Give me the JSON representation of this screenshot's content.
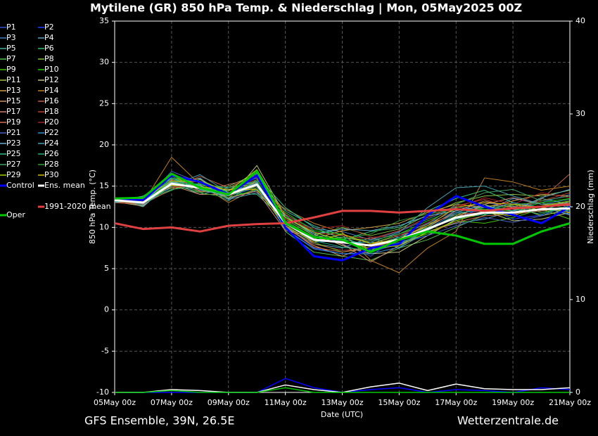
{
  "chart_data": {
    "type": "line",
    "title": "Mytilene  (GR)  850 hPa Temp. & Niederschlag | Mon, 05May2025 00Z",
    "ylabel": "850 hPa Temp. (°C)",
    "y2label": "Niederschlag (mm)",
    "xlabel": "Date (UTC)",
    "source_left": "GFS Ensemble, 39N, 26.5E",
    "source_right": "Wetterzentrale.de",
    "xlim": [
      0,
      16
    ],
    "xticks": [
      {
        "value": 0,
        "label": "05May 00z"
      },
      {
        "value": 2,
        "label": "07May 00z"
      },
      {
        "value": 4,
        "label": "09May 00z"
      },
      {
        "value": 6,
        "label": "11May 00z"
      },
      {
        "value": 8,
        "label": "13May 00z"
      },
      {
        "value": 10,
        "label": "15May 00z"
      },
      {
        "value": 12,
        "label": "17May 00z"
      },
      {
        "value": 14,
        "label": "19May 00z"
      },
      {
        "value": 16,
        "label": "21May 00z"
      }
    ],
    "ylim": [
      -10,
      35
    ],
    "yticks": [
      -10,
      -5,
      0,
      5,
      10,
      15,
      20,
      25,
      30,
      35
    ],
    "y2lim": [
      0,
      40
    ],
    "y2ticks": [
      0,
      10,
      20,
      30,
      40
    ],
    "grid": true,
    "x": [
      0,
      1,
      2,
      3,
      4,
      5,
      6,
      7,
      8,
      9,
      10,
      11,
      12,
      13,
      14,
      15,
      16
    ],
    "series": [
      {
        "name": "P1",
        "color": "#3050d0",
        "values": [
          13.2,
          13.5,
          15.0,
          14.5,
          13.8,
          14.8,
          11.2,
          9.5,
          8.0,
          6.5,
          9.0,
          10.5,
          12.0,
          13.0,
          12.5,
          13.0,
          14.0
        ]
      },
      {
        "name": "P2",
        "color": "#2040ff",
        "values": [
          13.4,
          12.8,
          15.8,
          15.2,
          14.5,
          16.0,
          9.8,
          7.5,
          6.8,
          7.0,
          8.0,
          9.0,
          11.0,
          12.5,
          11.0,
          11.5,
          12.0
        ]
      },
      {
        "name": "P3",
        "color": "#4080c0",
        "values": [
          13.0,
          13.2,
          14.8,
          16.0,
          13.5,
          14.5,
          11.5,
          9.8,
          9.5,
          8.5,
          9.5,
          11.0,
          12.5,
          12.0,
          13.5,
          12.8,
          13.0
        ]
      },
      {
        "name": "P4",
        "color": "#60a0c0",
        "values": [
          13.5,
          12.5,
          15.5,
          14.0,
          14.8,
          15.5,
          10.0,
          8.0,
          7.5,
          8.8,
          7.5,
          9.5,
          10.5,
          11.0,
          12.0,
          12.5,
          11.5
        ]
      },
      {
        "name": "P5",
        "color": "#40b0a0",
        "values": [
          13.1,
          13.8,
          16.0,
          15.0,
          13.2,
          15.8,
          12.0,
          10.2,
          9.0,
          7.2,
          8.8,
          10.2,
          11.8,
          12.8,
          11.5,
          13.5,
          12.8
        ]
      },
      {
        "name": "P6",
        "color": "#30c070",
        "values": [
          13.6,
          13.0,
          14.5,
          15.8,
          14.2,
          14.0,
          10.8,
          8.8,
          8.5,
          9.5,
          10.0,
          12.0,
          13.5,
          14.5,
          13.0,
          12.0,
          13.2
        ]
      },
      {
        "name": "P7",
        "color": "#50c050",
        "values": [
          13.3,
          12.7,
          15.2,
          14.2,
          15.0,
          16.5,
          9.5,
          7.0,
          6.5,
          6.0,
          7.5,
          8.5,
          10.0,
          11.5,
          12.8,
          11.8,
          12.5
        ]
      },
      {
        "name": "P8",
        "color": "#80c040",
        "values": [
          13.0,
          13.4,
          15.6,
          15.5,
          13.8,
          15.0,
          11.0,
          9.0,
          10.0,
          9.0,
          9.8,
          11.5,
          13.0,
          13.8,
          14.0,
          13.8,
          14.5
        ]
      },
      {
        "name": "P9",
        "color": "#40c000",
        "values": [
          13.4,
          13.1,
          16.2,
          14.6,
          14.4,
          16.2,
          10.2,
          8.2,
          7.0,
          7.5,
          8.2,
          9.2,
          10.8,
          10.5,
          11.2,
          12.2,
          11.0
        ]
      },
      {
        "name": "P10",
        "color": "#20d000",
        "values": [
          13.2,
          12.9,
          15.0,
          15.3,
          13.6,
          14.6,
          11.8,
          9.6,
          9.2,
          8.0,
          9.2,
          10.8,
          12.2,
          12.2,
          12.0,
          13.0,
          13.5
        ]
      },
      {
        "name": "P11",
        "color": "#a0c040",
        "values": [
          13.5,
          13.6,
          14.8,
          14.8,
          14.6,
          15.4,
          10.6,
          8.4,
          8.8,
          8.2,
          8.0,
          9.6,
          11.4,
          12.6,
          12.6,
          11.4,
          12.2
        ]
      },
      {
        "name": "P12",
        "color": "#c0c080",
        "values": [
          13.1,
          12.6,
          15.4,
          15.9,
          13.4,
          17.5,
          11.4,
          9.2,
          7.8,
          6.8,
          7.0,
          9.0,
          11.0,
          12.0,
          10.8,
          11.0,
          11.8
        ]
      },
      {
        "name": "P13",
        "color": "#d0a040",
        "values": [
          13.3,
          13.3,
          16.4,
          14.4,
          14.2,
          15.0,
          10.4,
          8.6,
          9.6,
          10.0,
          10.5,
          11.8,
          12.8,
          12.4,
          13.2,
          14.0,
          13.8
        ]
      },
      {
        "name": "P14",
        "color": "#c08020",
        "values": [
          13.4,
          13.0,
          18.5,
          15.2,
          13.0,
          14.8,
          12.2,
          10.5,
          9.4,
          6.0,
          4.5,
          7.5,
          9.5,
          16.0,
          15.5,
          14.5,
          15.0
        ]
      },
      {
        "name": "P15",
        "color": "#d09060",
        "values": [
          13.2,
          13.7,
          15.1,
          14.0,
          14.0,
          15.6,
          10.0,
          7.8,
          6.5,
          8.0,
          9.0,
          10.0,
          12.0,
          13.2,
          12.4,
          12.6,
          13.0
        ]
      },
      {
        "name": "P16",
        "color": "#c06040",
        "values": [
          13.0,
          12.8,
          14.6,
          16.2,
          14.8,
          16.4,
          10.8,
          8.0,
          7.2,
          7.4,
          8.6,
          10.4,
          11.6,
          11.8,
          12.4,
          13.4,
          16.5
        ]
      },
      {
        "name": "P17",
        "color": "#d08070",
        "values": [
          13.6,
          13.4,
          15.8,
          14.8,
          13.6,
          14.4,
          9.6,
          8.8,
          8.0,
          5.8,
          7.8,
          9.8,
          11.2,
          12.8,
          13.6,
          12.8,
          12.6
        ]
      },
      {
        "name": "P18",
        "color": "#c04030",
        "values": [
          13.3,
          13.2,
          15.3,
          15.6,
          14.4,
          15.8,
          11.6,
          9.4,
          9.0,
          8.6,
          9.6,
          11.2,
          12.6,
          13.4,
          12.2,
          13.2,
          14.2
        ]
      },
      {
        "name": "P19",
        "color": "#d07050",
        "values": [
          13.1,
          12.9,
          15.7,
          14.3,
          15.2,
          16.0,
          10.2,
          7.6,
          7.0,
          7.6,
          8.4,
          9.4,
          10.6,
          11.4,
          11.6,
          12.0,
          12.4
        ]
      },
      {
        "name": "P20",
        "color": "#a02020",
        "values": [
          13.5,
          13.5,
          14.9,
          15.0,
          13.8,
          15.2,
          11.0,
          9.8,
          10.2,
          8.8,
          9.0,
          10.6,
          12.4,
          13.6,
          12.8,
          14.2,
          13.6
        ]
      },
      {
        "name": "P21",
        "color": "#4060c0",
        "values": [
          13.4,
          13.1,
          16.8,
          15.4,
          14.0,
          16.6,
          10.6,
          8.2,
          8.4,
          7.0,
          8.2,
          9.0,
          10.2,
          11.2,
          10.6,
          11.4,
          12.8
        ]
      },
      {
        "name": "P22",
        "color": "#3090d0",
        "values": [
          13.2,
          13.3,
          15.2,
          14.7,
          14.6,
          15.0,
          9.8,
          7.4,
          6.8,
          6.8,
          7.6,
          9.8,
          11.8,
          12.0,
          13.0,
          12.4,
          11.6
        ]
      },
      {
        "name": "P23",
        "color": "#60b0d0",
        "values": [
          13.0,
          13.6,
          15.5,
          15.1,
          13.4,
          14.2,
          11.2,
          9.2,
          9.8,
          9.6,
          10.2,
          11.4,
          12.0,
          12.6,
          12.0,
          13.6,
          14.6
        ]
      },
      {
        "name": "P24",
        "color": "#40a0b0",
        "values": [
          13.6,
          12.7,
          15.0,
          16.4,
          14.2,
          15.4,
          10.4,
          8.6,
          8.2,
          8.2,
          9.4,
          12.4,
          14.8,
          15.0,
          13.8,
          12.8,
          13.4
        ]
      },
      {
        "name": "P25",
        "color": "#30c090",
        "values": [
          13.3,
          13.0,
          16.0,
          14.6,
          13.8,
          16.2,
          12.4,
          10.0,
          8.6,
          7.8,
          8.8,
          10.0,
          11.0,
          11.6,
          11.8,
          12.2,
          12.0
        ]
      },
      {
        "name": "P26",
        "color": "#20b080",
        "values": [
          13.1,
          13.4,
          15.4,
          15.2,
          14.8,
          15.6,
          10.0,
          8.4,
          7.6,
          7.2,
          8.0,
          9.6,
          11.6,
          12.4,
          12.2,
          11.6,
          12.6
        ]
      },
      {
        "name": "P27",
        "color": "#40a060",
        "values": [
          13.4,
          13.2,
          14.6,
          15.0,
          14.0,
          14.8,
          11.4,
          9.0,
          8.8,
          8.4,
          9.2,
          10.4,
          12.8,
          14.2,
          14.6,
          13.2,
          13.8
        ]
      },
      {
        "name": "P28",
        "color": "#30a030",
        "values": [
          13.2,
          12.9,
          15.9,
          14.2,
          13.6,
          15.8,
          10.8,
          8.8,
          8.6,
          9.2,
          10.8,
          11.6,
          12.2,
          12.0,
          12.8,
          13.0,
          12.2
        ]
      },
      {
        "name": "P29",
        "color": "#a0d000",
        "values": [
          13.5,
          13.5,
          15.6,
          15.6,
          14.4,
          17.0,
          11.2,
          9.4,
          8.4,
          7.4,
          7.8,
          9.4,
          10.8,
          11.8,
          11.4,
          12.6,
          13.2
        ]
      },
      {
        "name": "P30",
        "color": "#d0c000",
        "values": [
          13.3,
          13.1,
          15.1,
          14.9,
          14.6,
          14.6,
          10.2,
          8.2,
          9.2,
          8.0,
          8.6,
          10.2,
          12.4,
          13.0,
          12.8,
          12.4,
          11.8
        ]
      },
      {
        "name": "Control",
        "color": "#0000ff",
        "width": 3,
        "values": [
          13.5,
          13.3,
          16.3,
          15.5,
          14.0,
          16.3,
          10.0,
          6.5,
          6.0,
          7.5,
          8.0,
          11.5,
          13.8,
          12.5,
          11.5,
          10.5,
          12.5
        ],
        "precip": [
          0,
          0,
          0,
          0,
          0,
          0,
          1.5,
          0.5,
          0,
          0.3,
          0.5,
          0,
          0.3,
          0.2,
          0,
          0.5,
          0.3
        ]
      },
      {
        "name": "Ens. mean",
        "color": "#ffffff",
        "width": 3,
        "values": [
          13.3,
          13.0,
          15.3,
          14.8,
          14.0,
          15.2,
          10.5,
          8.5,
          8.2,
          7.8,
          8.5,
          9.8,
          11.2,
          11.8,
          11.8,
          12.2,
          12.3
        ],
        "precip": [
          0,
          0,
          0.3,
          0.2,
          0,
          0,
          0.8,
          0.3,
          0,
          0.6,
          1.0,
          0.2,
          0.9,
          0.4,
          0.3,
          0.3,
          0.5
        ]
      },
      {
        "name": "1991-2020 mean",
        "color": "#e04040",
        "width": 3,
        "values": [
          10.5,
          9.8,
          10.0,
          9.5,
          10.2,
          10.4,
          10.5,
          11.2,
          12.0,
          12.0,
          11.8,
          12.0,
          12.2,
          12.0,
          12.3,
          12.5,
          12.8
        ]
      },
      {
        "name": "Oper",
        "color": "#00c800",
        "width": 3,
        "values": [
          13.5,
          13.6,
          16.5,
          14.8,
          14.0,
          16.8,
          10.5,
          8.8,
          8.5,
          7.0,
          8.5,
          9.5,
          9.0,
          8.0,
          8.0,
          9.5,
          10.5
        ],
        "precip": [
          0,
          0,
          0.2,
          0,
          0,
          0,
          0.5,
          0,
          0,
          0,
          0,
          0,
          0,
          0,
          0,
          0,
          0
        ]
      }
    ]
  }
}
